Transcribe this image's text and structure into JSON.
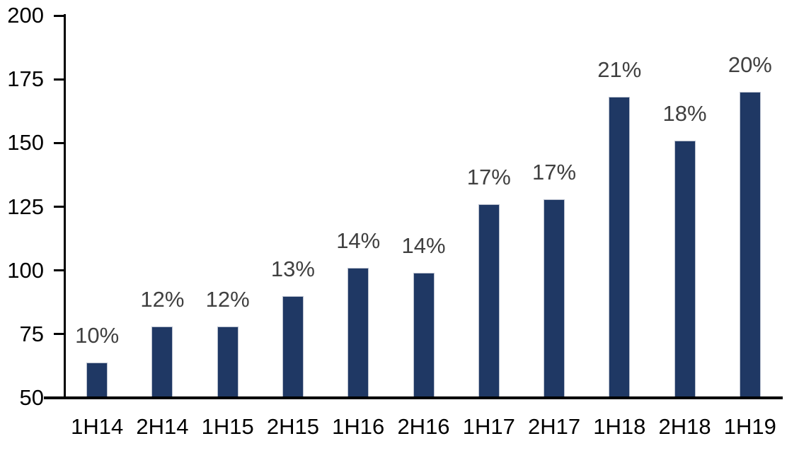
{
  "chart_data": {
    "type": "bar",
    "categories": [
      "1H14",
      "2H14",
      "1H15",
      "2H15",
      "1H16",
      "2H16",
      "1H17",
      "2H17",
      "1H18",
      "2H18",
      "1H19"
    ],
    "values": [
      64,
      78,
      78,
      90,
      101,
      99,
      126,
      128,
      168,
      151,
      170
    ],
    "bar_labels": [
      "10%",
      "12%",
      "12%",
      "13%",
      "14%",
      "14%",
      "17%",
      "17%",
      "21%",
      "18%",
      "20%"
    ],
    "title": "",
    "xlabel": "",
    "ylabel": "",
    "ylim": [
      50,
      200
    ],
    "y_ticks": [
      50,
      75,
      100,
      125,
      150,
      175,
      200
    ],
    "grid": false,
    "legend": "none",
    "colors": {
      "bar_fill": "#1F3864",
      "bar_border": "#b9c0ce",
      "data_label": "#404040",
      "axis": "#000000",
      "background": "#ffffff"
    }
  }
}
